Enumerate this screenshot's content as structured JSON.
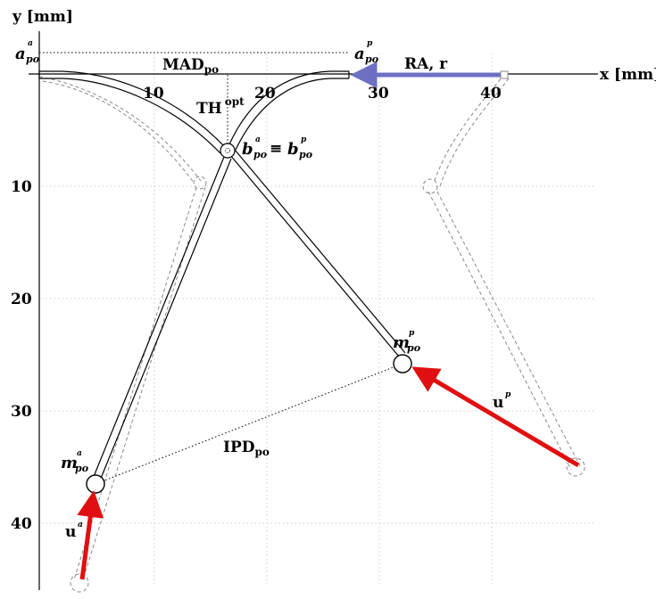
{
  "axes": {
    "x_label": "x [mm]",
    "y_label": "y [mm]",
    "x_ticks": [
      "10",
      "20",
      "30",
      "40"
    ],
    "y_ticks": [
      "10",
      "20",
      "30",
      "40"
    ]
  },
  "labels": {
    "mad": "MAD",
    "mad_sub": "po",
    "th": "TH",
    "th_sup": "opt",
    "ra": "RA, r",
    "ipd": "IPD",
    "ipd_sub": "po",
    "a_ant": "a",
    "a_ant_sub": "po",
    "a_ant_sup": "a",
    "a_post": "a",
    "a_post_sub": "po",
    "a_post_sup": "p",
    "b_ant": "b",
    "b_ant_sub": "po",
    "b_ant_sup": "a",
    "equiv": "≡",
    "b_post": "b",
    "b_post_sub": "po",
    "b_post_sup": "p",
    "m_post": "m",
    "m_post_sub": "po",
    "m_post_sup": "p",
    "m_ant": "m",
    "m_ant_sub": "po",
    "m_ant_sup": "a",
    "u_post": "u",
    "u_post_sup": "p",
    "u_ant": "u",
    "u_ant_sup": "a"
  },
  "colors": {
    "force_arrow": "#e01010",
    "ra_arrow": "#6d6fc2",
    "ghost": "#888888",
    "grid": "#cccccc"
  }
}
